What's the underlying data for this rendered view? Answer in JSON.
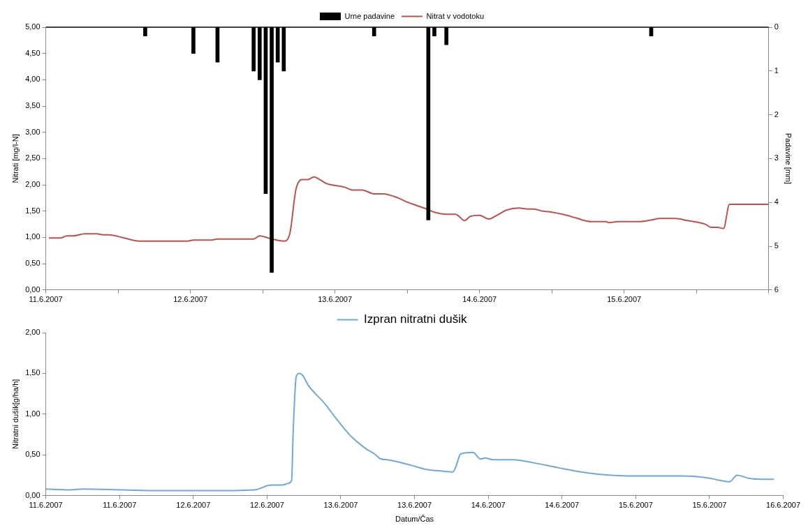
{
  "chart_data": [
    {
      "type": "line",
      "ylabel": "Nitrati [mg/l-N]",
      "y2label": "Padavine [mm]",
      "legend": "top",
      "marker": "none",
      "xlim": [
        "2007-06-11T00:00",
        "2007-06-16T00:00"
      ],
      "xticks": [
        {
          "value": "2007-06-11T00:00",
          "label": "11.6.2007"
        },
        {
          "value": "2007-06-11T12:00",
          "label": null
        },
        {
          "value": "2007-06-12T00:00",
          "label": "12.6.2007"
        },
        {
          "value": "2007-06-12T12:00",
          "label": null
        },
        {
          "value": "2007-06-13T00:00",
          "label": "13.6.2007"
        },
        {
          "value": "2007-06-13T12:00",
          "label": null
        },
        {
          "value": "2007-06-14T00:00",
          "label": "14.6.2007"
        },
        {
          "value": "2007-06-14T12:00",
          "label": null
        },
        {
          "value": "2007-06-15T00:00",
          "label": "15.6.2007"
        },
        {
          "value": "2007-06-15T12:00",
          "label": null
        },
        {
          "value": "2007-06-16T00:00",
          "label": null
        }
      ],
      "ylim": [
        0,
        5
      ],
      "yticks": [
        {
          "value": 0,
          "label": "0,00"
        },
        {
          "value": 0.5,
          "label": "0,50"
        },
        {
          "value": 1,
          "label": "1,00"
        },
        {
          "value": 1.5,
          "label": "1,50"
        },
        {
          "value": 2,
          "label": "2,00"
        },
        {
          "value": 2.5,
          "label": "2,50"
        },
        {
          "value": 3,
          "label": "3,00"
        },
        {
          "value": 3.5,
          "label": "3,50"
        },
        {
          "value": 4,
          "label": "4,00"
        },
        {
          "value": 4.5,
          "label": "4,50"
        },
        {
          "value": 5,
          "label": "5,00"
        }
      ],
      "y2lim": [
        6,
        0
      ],
      "y2ticks": [
        0,
        1,
        2,
        3,
        4,
        5,
        6
      ],
      "series": [
        {
          "type": "bar",
          "name": "Urne padavine",
          "color": "#000000",
          "axis": "y2",
          "x": [
            "2007-06-11T16:30",
            "2007-06-12T00:30",
            "2007-06-12T04:30",
            "2007-06-12T10:30",
            "2007-06-12T11:30",
            "2007-06-12T12:30",
            "2007-06-12T13:30",
            "2007-06-12T14:30",
            "2007-06-12T15:30",
            "2007-06-13T06:30",
            "2007-06-13T15:30",
            "2007-06-13T16:30",
            "2007-06-13T18:30",
            "2007-06-15T04:30"
          ],
          "values": [
            0.2,
            0.6,
            0.8,
            1.0,
            1.2,
            3.8,
            5.6,
            0.8,
            1.0,
            0.2,
            4.4,
            0.2,
            0.4,
            0.2
          ]
        },
        {
          "name": "Nitrat v vodotoku",
          "color": "#c0504d",
          "x": [
            "2007-06-11T00:30",
            "2007-06-11T02:30",
            "2007-06-11T03:30",
            "2007-06-11T04:30",
            "2007-06-11T06:30",
            "2007-06-11T08:30",
            "2007-06-11T09:30",
            "2007-06-11T10:30",
            "2007-06-11T13:00",
            "2007-06-11T15:30",
            "2007-06-11T23:30",
            "2007-06-12T00:30",
            "2007-06-12T03:30",
            "2007-06-12T04:30",
            "2007-06-12T10:30",
            "2007-06-12T11:30",
            "2007-06-12T13:30",
            "2007-06-12T15:30",
            "2007-06-12T16:30",
            "2007-06-12T17:30",
            "2007-06-12T18:30",
            "2007-06-12T19:30",
            "2007-06-12T20:30",
            "2007-06-12T21:30",
            "2007-06-12T22:30",
            "2007-06-13T01:30",
            "2007-06-13T03:00",
            "2007-06-13T04:30",
            "2007-06-13T06:30",
            "2007-06-13T08:00",
            "2007-06-13T10:30",
            "2007-06-13T12:00",
            "2007-06-13T13:30",
            "2007-06-13T15:00",
            "2007-06-13T16:30",
            "2007-06-13T18:30",
            "2007-06-13T20:00",
            "2007-06-13T20:30",
            "2007-06-13T21:30",
            "2007-06-13T22:30",
            "2007-06-14T00:00",
            "2007-06-14T00:30",
            "2007-06-14T01:30",
            "2007-06-14T03:00",
            "2007-06-14T04:30",
            "2007-06-14T06:30",
            "2007-06-14T08:00",
            "2007-06-14T09:00",
            "2007-06-14T10:30",
            "2007-06-14T11:30",
            "2007-06-14T14:30",
            "2007-06-14T16:00",
            "2007-06-14T18:30",
            "2007-06-14T21:00",
            "2007-06-14T21:30",
            "2007-06-14T23:00",
            "2007-06-15T02:30",
            "2007-06-15T04:30",
            "2007-06-15T06:00",
            "2007-06-15T08:30",
            "2007-06-15T10:30",
            "2007-06-15T13:30",
            "2007-06-15T14:30",
            "2007-06-15T15:30",
            "2007-06-15T16:30",
            "2007-06-15T17:30",
            "2007-06-16T00:00"
          ],
          "values": [
            0.99,
            0.99,
            1.03,
            1.03,
            1.07,
            1.07,
            1.05,
            1.05,
            0.99,
            0.93,
            0.93,
            0.95,
            0.95,
            0.97,
            0.97,
            1.03,
            0.97,
            0.93,
            1.07,
            1.9,
            2.1,
            2.1,
            2.15,
            2.1,
            2.03,
            1.96,
            1.9,
            1.9,
            1.83,
            1.83,
            1.75,
            1.67,
            1.61,
            1.55,
            1.48,
            1.44,
            1.44,
            1.41,
            1.32,
            1.4,
            1.42,
            1.4,
            1.35,
            1.43,
            1.52,
            1.56,
            1.54,
            1.54,
            1.5,
            1.49,
            1.42,
            1.37,
            1.3,
            1.3,
            1.28,
            1.3,
            1.3,
            1.33,
            1.36,
            1.36,
            1.32,
            1.25,
            1.19,
            1.19,
            1.17,
            1.63,
            1.63
          ]
        }
      ]
    },
    {
      "type": "line",
      "ylabel": "Nitratni dušik[g/ha/h]",
      "xlabel": "Datum/Čas",
      "legend": "top",
      "marker": "none",
      "xlim": [
        "2007-06-11T00:00",
        "2007-06-16T00:00"
      ],
      "xticks": [
        {
          "value": "2007-06-11T00:00",
          "label": "11.6.2007"
        },
        {
          "value": "2007-06-11T12:00",
          "label": "11.6.2007"
        },
        {
          "value": "2007-06-12T00:00",
          "label": "12.6.2007"
        },
        {
          "value": "2007-06-12T12:00",
          "label": "12.6.2007"
        },
        {
          "value": "2007-06-13T00:00",
          "label": "13.6.2007"
        },
        {
          "value": "2007-06-13T12:00",
          "label": "13.6.2007"
        },
        {
          "value": "2007-06-14T00:00",
          "label": "14.6.2007"
        },
        {
          "value": "2007-06-14T12:00",
          "label": "14.6.2007"
        },
        {
          "value": "2007-06-15T00:00",
          "label": "15.6.2007"
        },
        {
          "value": "2007-06-15T12:00",
          "label": "15.6.2007"
        },
        {
          "value": "2007-06-16T00:00",
          "label": "16.6.2007"
        }
      ],
      "ylim": [
        0,
        2
      ],
      "yticks": [
        {
          "value": 0,
          "label": "0,00"
        },
        {
          "value": 0.5,
          "label": "0,50"
        },
        {
          "value": 1,
          "label": "1,00"
        },
        {
          "value": 1.5,
          "label": "1,50"
        },
        {
          "value": 2,
          "label": "2,00"
        }
      ],
      "series": [
        {
          "name": "Izpran nitratni dušik",
          "color": "#6fa8dc",
          "x": [
            "2007-06-11T00:00",
            "2007-06-11T04:00",
            "2007-06-11T06:00",
            "2007-06-11T12:30",
            "2007-06-11T18:00",
            "2007-06-12T02:00",
            "2007-06-12T10:00",
            "2007-06-12T12:00",
            "2007-06-12T13:00",
            "2007-06-12T14:30",
            "2007-06-12T15:30",
            "2007-06-12T16:00",
            "2007-06-12T16:15",
            "2007-06-12T16:45",
            "2007-06-12T17:15",
            "2007-06-12T17:45",
            "2007-06-12T18:45",
            "2007-06-12T21:30",
            "2007-06-12T23:00",
            "2007-06-13T01:30",
            "2007-06-13T04:00",
            "2007-06-13T05:30",
            "2007-06-13T06:30",
            "2007-06-13T07:30",
            "2007-06-13T09:30",
            "2007-06-13T11:30",
            "2007-06-13T14:00",
            "2007-06-13T16:30",
            "2007-06-13T18:15",
            "2007-06-13T18:45",
            "2007-06-13T19:30",
            "2007-06-13T21:30",
            "2007-06-13T22:45",
            "2007-06-13T23:30",
            "2007-06-14T00:45",
            "2007-06-14T04:00",
            "2007-06-14T07:30",
            "2007-06-14T11:30",
            "2007-06-14T16:00",
            "2007-06-14T20:00",
            "2007-06-15T02:30",
            "2007-06-15T07:30",
            "2007-06-15T11:30",
            "2007-06-15T13:30",
            "2007-06-15T15:15",
            "2007-06-15T16:30",
            "2007-06-15T18:30",
            "2007-06-15T20:30",
            "2007-06-15T22:30"
          ],
          "values": [
            0.08,
            0.07,
            0.08,
            0.07,
            0.06,
            0.06,
            0.07,
            0.12,
            0.13,
            0.13,
            0.15,
            0.19,
            0.77,
            1.46,
            1.5,
            1.48,
            1.35,
            1.12,
            0.97,
            0.74,
            0.58,
            0.51,
            0.45,
            0.44,
            0.41,
            0.37,
            0.32,
            0.3,
            0.29,
            0.36,
            0.51,
            0.53,
            0.45,
            0.46,
            0.44,
            0.44,
            0.4,
            0.34,
            0.28,
            0.25,
            0.24,
            0.24,
            0.22,
            0.19,
            0.17,
            0.25,
            0.21,
            0.2,
            0.2
          ]
        }
      ]
    }
  ]
}
